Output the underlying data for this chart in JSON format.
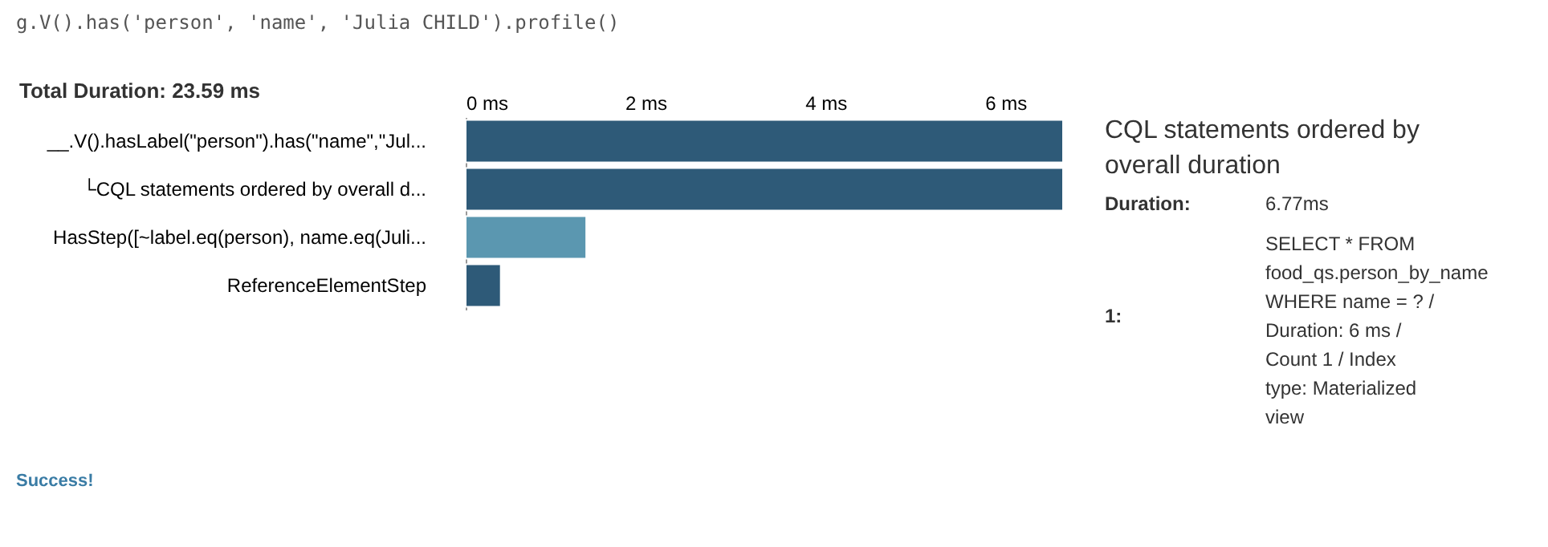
{
  "chart_data": [
    {
      "type": "bar",
      "orientation": "horizontal",
      "title": "Total Duration: 23.59 ms",
      "categories": [
        "__.V().hasLabel(\"person\").has(\"name\",\"Jul...",
        "└CQL statements ordered by overall d...",
        "HasStep([~label.eq(person), name.eq(Juli...",
        "ReferenceElementStep"
      ],
      "values": [
        6.64,
        6.64,
        1.34,
        0.39
      ],
      "colors": [
        "#2e5a78",
        "#2e5a78",
        "#5b97b0",
        "#2e5a78"
      ],
      "xlim": [
        0,
        6.64
      ],
      "xticks": [
        {
          "value": 0,
          "label": "0 ms"
        },
        {
          "value": 2,
          "label": "2 ms"
        },
        {
          "value": 4,
          "label": "4 ms"
        },
        {
          "value": 6,
          "label": "6 ms"
        }
      ],
      "grid": false,
      "annotations": [
        "g.V().has('person', 'name', 'Julia CHILD').profile()",
        "Success!"
      ]
    },
    {
      "type": "other",
      "title": "CQL statements ordered by overall duration",
      "annotations": [
        "Duration:",
        "6.77ms",
        "1:",
        "SELECT * FROM food_qs.person_by_name WHERE name = ? / Duration: 6 ms / Count 1 / Index type: Materialized view"
      ]
    }
  ]
}
